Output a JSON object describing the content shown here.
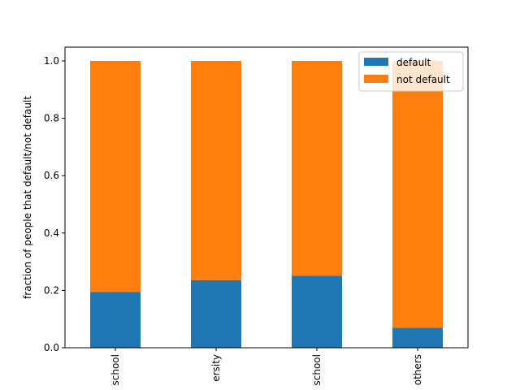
{
  "chart_data": {
    "type": "bar",
    "stacked": true,
    "categories": [
      "school",
      "ersity",
      "school",
      "others"
    ],
    "series": [
      {
        "name": "default",
        "values": [
          0.194,
          0.236,
          0.251,
          0.07
        ],
        "color": "#1f77b4"
      },
      {
        "name": "not default",
        "values": [
          0.806,
          0.764,
          0.749,
          0.93
        ],
        "color": "#ff7f0e"
      }
    ],
    "ylabel": "fraction of people that default/not default",
    "ylim": [
      0,
      1.0
    ],
    "yticks": [
      "0.0",
      "0.2",
      "0.4",
      "0.6",
      "0.8",
      "1.0"
    ],
    "grid": false,
    "legend_position": "top-right"
  }
}
